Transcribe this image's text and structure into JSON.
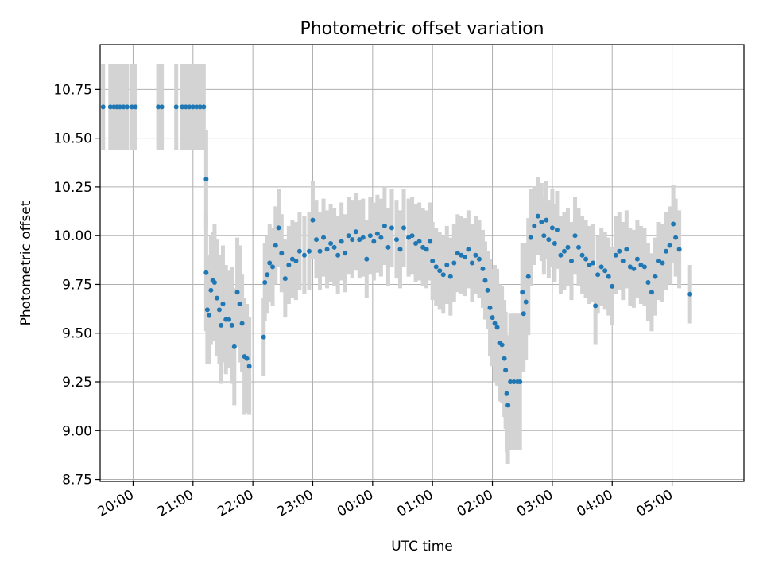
{
  "chart_data": {
    "type": "scatter",
    "title": "Photometric offset variation",
    "xlabel": "UTC time",
    "ylabel": "Photometric offset",
    "xlim": [
      -0.55,
      10.2
    ],
    "ylim": [
      8.74,
      10.98
    ],
    "grid": true,
    "colors": {
      "point": "#1f77b4",
      "errorbar": "#d3d3d3",
      "grid": "#b0b0b0",
      "axis": "#000000"
    },
    "x_ticks": [
      {
        "value": 0,
        "label": "20:00"
      },
      {
        "value": 1,
        "label": "21:00"
      },
      {
        "value": 2,
        "label": "22:00"
      },
      {
        "value": 3,
        "label": "23:00"
      },
      {
        "value": 4,
        "label": "00:00"
      },
      {
        "value": 5,
        "label": "01:00"
      },
      {
        "value": 6,
        "label": "02:00"
      },
      {
        "value": 7,
        "label": "03:00"
      },
      {
        "value": 8,
        "label": "04:00"
      },
      {
        "value": 9,
        "label": "05:00"
      }
    ],
    "y_ticks": [
      {
        "value": 8.75,
        "label": "8.75"
      },
      {
        "value": 9.0,
        "label": "9.00"
      },
      {
        "value": 9.25,
        "label": "9.25"
      },
      {
        "value": 9.5,
        "label": "9.50"
      },
      {
        "value": 9.75,
        "label": "9.75"
      },
      {
        "value": 10.0,
        "label": "10.00"
      },
      {
        "value": 10.25,
        "label": "10.25"
      },
      {
        "value": 10.5,
        "label": "10.50"
      },
      {
        "value": 10.75,
        "label": "10.75"
      }
    ],
    "series_name": "photometric offset",
    "points": [
      [
        -0.5,
        10.66,
        0.22
      ],
      [
        -0.38,
        10.66,
        0.22
      ],
      [
        -0.32,
        10.66,
        0.22
      ],
      [
        -0.27,
        10.66,
        0.22
      ],
      [
        -0.22,
        10.66,
        0.22
      ],
      [
        -0.16,
        10.66,
        0.22
      ],
      [
        -0.1,
        10.66,
        0.22
      ],
      [
        -0.02,
        10.66,
        0.22
      ],
      [
        0.04,
        10.66,
        0.22
      ],
      [
        0.42,
        10.66,
        0.22
      ],
      [
        0.48,
        10.66,
        0.22
      ],
      [
        0.72,
        10.66,
        0.22
      ],
      [
        0.82,
        10.66,
        0.22
      ],
      [
        0.88,
        10.66,
        0.22
      ],
      [
        0.94,
        10.66,
        0.22
      ],
      [
        1.0,
        10.66,
        0.22
      ],
      [
        1.06,
        10.66,
        0.22
      ],
      [
        1.12,
        10.66,
        0.22
      ],
      [
        1.18,
        10.66,
        0.22
      ],
      [
        1.22,
        10.29,
        0.25
      ],
      [
        1.22,
        9.81,
        0.3
      ],
      [
        1.24,
        9.62,
        0.28
      ],
      [
        1.27,
        9.59,
        0.25
      ],
      [
        1.3,
        9.72,
        0.28
      ],
      [
        1.33,
        9.77,
        0.25
      ],
      [
        1.36,
        9.76,
        0.3
      ],
      [
        1.4,
        9.68,
        0.3
      ],
      [
        1.44,
        9.62,
        0.28
      ],
      [
        1.47,
        9.54,
        0.3
      ],
      [
        1.5,
        9.65,
        0.3
      ],
      [
        1.55,
        9.57,
        0.28
      ],
      [
        1.6,
        9.57,
        0.25
      ],
      [
        1.65,
        9.54,
        0.3
      ],
      [
        1.69,
        9.43,
        0.3
      ],
      [
        1.74,
        9.71,
        0.28
      ],
      [
        1.78,
        9.65,
        0.3
      ],
      [
        1.82,
        9.55,
        0.25
      ],
      [
        1.86,
        9.38,
        0.3
      ],
      [
        1.9,
        9.37,
        0.28
      ],
      [
        1.94,
        9.33,
        0.25
      ],
      [
        2.18,
        9.48,
        0.2
      ],
      [
        2.2,
        9.76,
        0.2
      ],
      [
        2.24,
        9.8,
        0.2
      ],
      [
        2.28,
        9.86,
        0.2
      ],
      [
        2.33,
        9.84,
        0.2
      ],
      [
        2.38,
        9.95,
        0.2
      ],
      [
        2.43,
        10.04,
        0.2
      ],
      [
        2.48,
        9.91,
        0.2
      ],
      [
        2.54,
        9.78,
        0.2
      ],
      [
        2.6,
        9.85,
        0.2
      ],
      [
        2.66,
        9.88,
        0.2
      ],
      [
        2.72,
        9.87,
        0.2
      ],
      [
        2.78,
        9.92,
        0.2
      ],
      [
        2.86,
        9.9,
        0.2
      ],
      [
        2.94,
        9.92,
        0.2
      ],
      [
        3.0,
        10.08,
        0.2
      ],
      [
        3.06,
        9.98,
        0.2
      ],
      [
        3.12,
        9.92,
        0.2
      ],
      [
        3.18,
        9.99,
        0.2
      ],
      [
        3.24,
        9.93,
        0.2
      ],
      [
        3.3,
        9.96,
        0.2
      ],
      [
        3.36,
        9.94,
        0.2
      ],
      [
        3.42,
        9.9,
        0.2
      ],
      [
        3.48,
        9.97,
        0.2
      ],
      [
        3.54,
        9.91,
        0.2
      ],
      [
        3.6,
        10.0,
        0.2
      ],
      [
        3.66,
        9.98,
        0.2
      ],
      [
        3.72,
        10.02,
        0.2
      ],
      [
        3.78,
        9.98,
        0.2
      ],
      [
        3.84,
        9.99,
        0.2
      ],
      [
        3.9,
        9.88,
        0.2
      ],
      [
        3.96,
        10.0,
        0.2
      ],
      [
        4.02,
        9.97,
        0.2
      ],
      [
        4.08,
        10.01,
        0.2
      ],
      [
        4.14,
        9.99,
        0.2
      ],
      [
        4.2,
        10.05,
        0.2
      ],
      [
        4.26,
        9.94,
        0.2
      ],
      [
        4.32,
        10.04,
        0.2
      ],
      [
        4.4,
        9.98,
        0.2
      ],
      [
        4.46,
        9.93,
        0.2
      ],
      [
        4.52,
        10.04,
        0.2
      ],
      [
        4.6,
        9.99,
        0.2
      ],
      [
        4.66,
        10.0,
        0.2
      ],
      [
        4.72,
        9.96,
        0.2
      ],
      [
        4.78,
        9.97,
        0.2
      ],
      [
        4.84,
        9.94,
        0.2
      ],
      [
        4.9,
        9.93,
        0.2
      ],
      [
        4.96,
        9.97,
        0.2
      ],
      [
        5.0,
        9.87,
        0.2
      ],
      [
        5.06,
        9.84,
        0.2
      ],
      [
        5.12,
        9.82,
        0.2
      ],
      [
        5.18,
        9.8,
        0.2
      ],
      [
        5.24,
        9.85,
        0.2
      ],
      [
        5.3,
        9.79,
        0.2
      ],
      [
        5.36,
        9.86,
        0.2
      ],
      [
        5.42,
        9.91,
        0.2
      ],
      [
        5.48,
        9.9,
        0.2
      ],
      [
        5.54,
        9.89,
        0.2
      ],
      [
        5.6,
        9.93,
        0.2
      ],
      [
        5.66,
        9.86,
        0.2
      ],
      [
        5.72,
        9.9,
        0.2
      ],
      [
        5.78,
        9.88,
        0.2
      ],
      [
        5.84,
        9.83,
        0.2
      ],
      [
        5.88,
        9.77,
        0.2
      ],
      [
        5.92,
        9.72,
        0.2
      ],
      [
        5.96,
        9.63,
        0.25
      ],
      [
        6.0,
        9.58,
        0.25
      ],
      [
        6.04,
        9.55,
        0.3
      ],
      [
        6.08,
        9.53,
        0.3
      ],
      [
        6.12,
        9.45,
        0.3
      ],
      [
        6.16,
        9.44,
        0.3
      ],
      [
        6.2,
        9.37,
        0.3
      ],
      [
        6.22,
        9.31,
        0.3
      ],
      [
        6.24,
        9.19,
        0.3
      ],
      [
        6.26,
        9.13,
        0.3
      ],
      [
        6.3,
        9.25,
        0.35
      ],
      [
        6.36,
        9.25,
        0.35
      ],
      [
        6.42,
        9.25,
        0.35
      ],
      [
        6.46,
        9.25,
        0.35
      ],
      [
        6.5,
        9.71,
        0.25
      ],
      [
        6.52,
        9.6,
        0.3
      ],
      [
        6.56,
        9.66,
        0.3
      ],
      [
        6.6,
        9.79,
        0.3
      ],
      [
        6.64,
        9.99,
        0.25
      ],
      [
        6.7,
        10.05,
        0.2
      ],
      [
        6.76,
        10.1,
        0.2
      ],
      [
        6.82,
        10.07,
        0.2
      ],
      [
        6.86,
        10.0,
        0.2
      ],
      [
        6.9,
        10.08,
        0.2
      ],
      [
        6.94,
        9.98,
        0.2
      ],
      [
        7.0,
        10.04,
        0.2
      ],
      [
        7.04,
        9.96,
        0.2
      ],
      [
        7.08,
        10.03,
        0.2
      ],
      [
        7.14,
        9.9,
        0.2
      ],
      [
        7.2,
        9.92,
        0.2
      ],
      [
        7.26,
        9.94,
        0.2
      ],
      [
        7.32,
        9.87,
        0.2
      ],
      [
        7.38,
        10.0,
        0.2
      ],
      [
        7.44,
        9.94,
        0.2
      ],
      [
        7.5,
        9.9,
        0.2
      ],
      [
        7.56,
        9.88,
        0.2
      ],
      [
        7.62,
        9.85,
        0.2
      ],
      [
        7.68,
        9.86,
        0.2
      ],
      [
        7.72,
        9.64,
        0.2
      ],
      [
        7.76,
        9.8,
        0.2
      ],
      [
        7.82,
        9.84,
        0.2
      ],
      [
        7.88,
        9.82,
        0.2
      ],
      [
        7.94,
        9.79,
        0.2
      ],
      [
        8.0,
        9.74,
        0.2
      ],
      [
        8.06,
        9.9,
        0.2
      ],
      [
        8.12,
        9.92,
        0.2
      ],
      [
        8.18,
        9.87,
        0.2
      ],
      [
        8.24,
        9.93,
        0.2
      ],
      [
        8.3,
        9.84,
        0.2
      ],
      [
        8.36,
        9.83,
        0.2
      ],
      [
        8.42,
        9.88,
        0.2
      ],
      [
        8.48,
        9.85,
        0.2
      ],
      [
        8.54,
        9.84,
        0.2
      ],
      [
        8.6,
        9.76,
        0.2
      ],
      [
        8.66,
        9.71,
        0.2
      ],
      [
        8.72,
        9.79,
        0.2
      ],
      [
        8.78,
        9.87,
        0.2
      ],
      [
        8.84,
        9.86,
        0.2
      ],
      [
        8.9,
        9.92,
        0.2
      ],
      [
        8.96,
        9.95,
        0.2
      ],
      [
        9.02,
        10.06,
        0.2
      ],
      [
        9.06,
        9.99,
        0.2
      ],
      [
        9.12,
        9.93,
        0.2
      ],
      [
        9.3,
        9.7,
        0.15
      ]
    ]
  }
}
